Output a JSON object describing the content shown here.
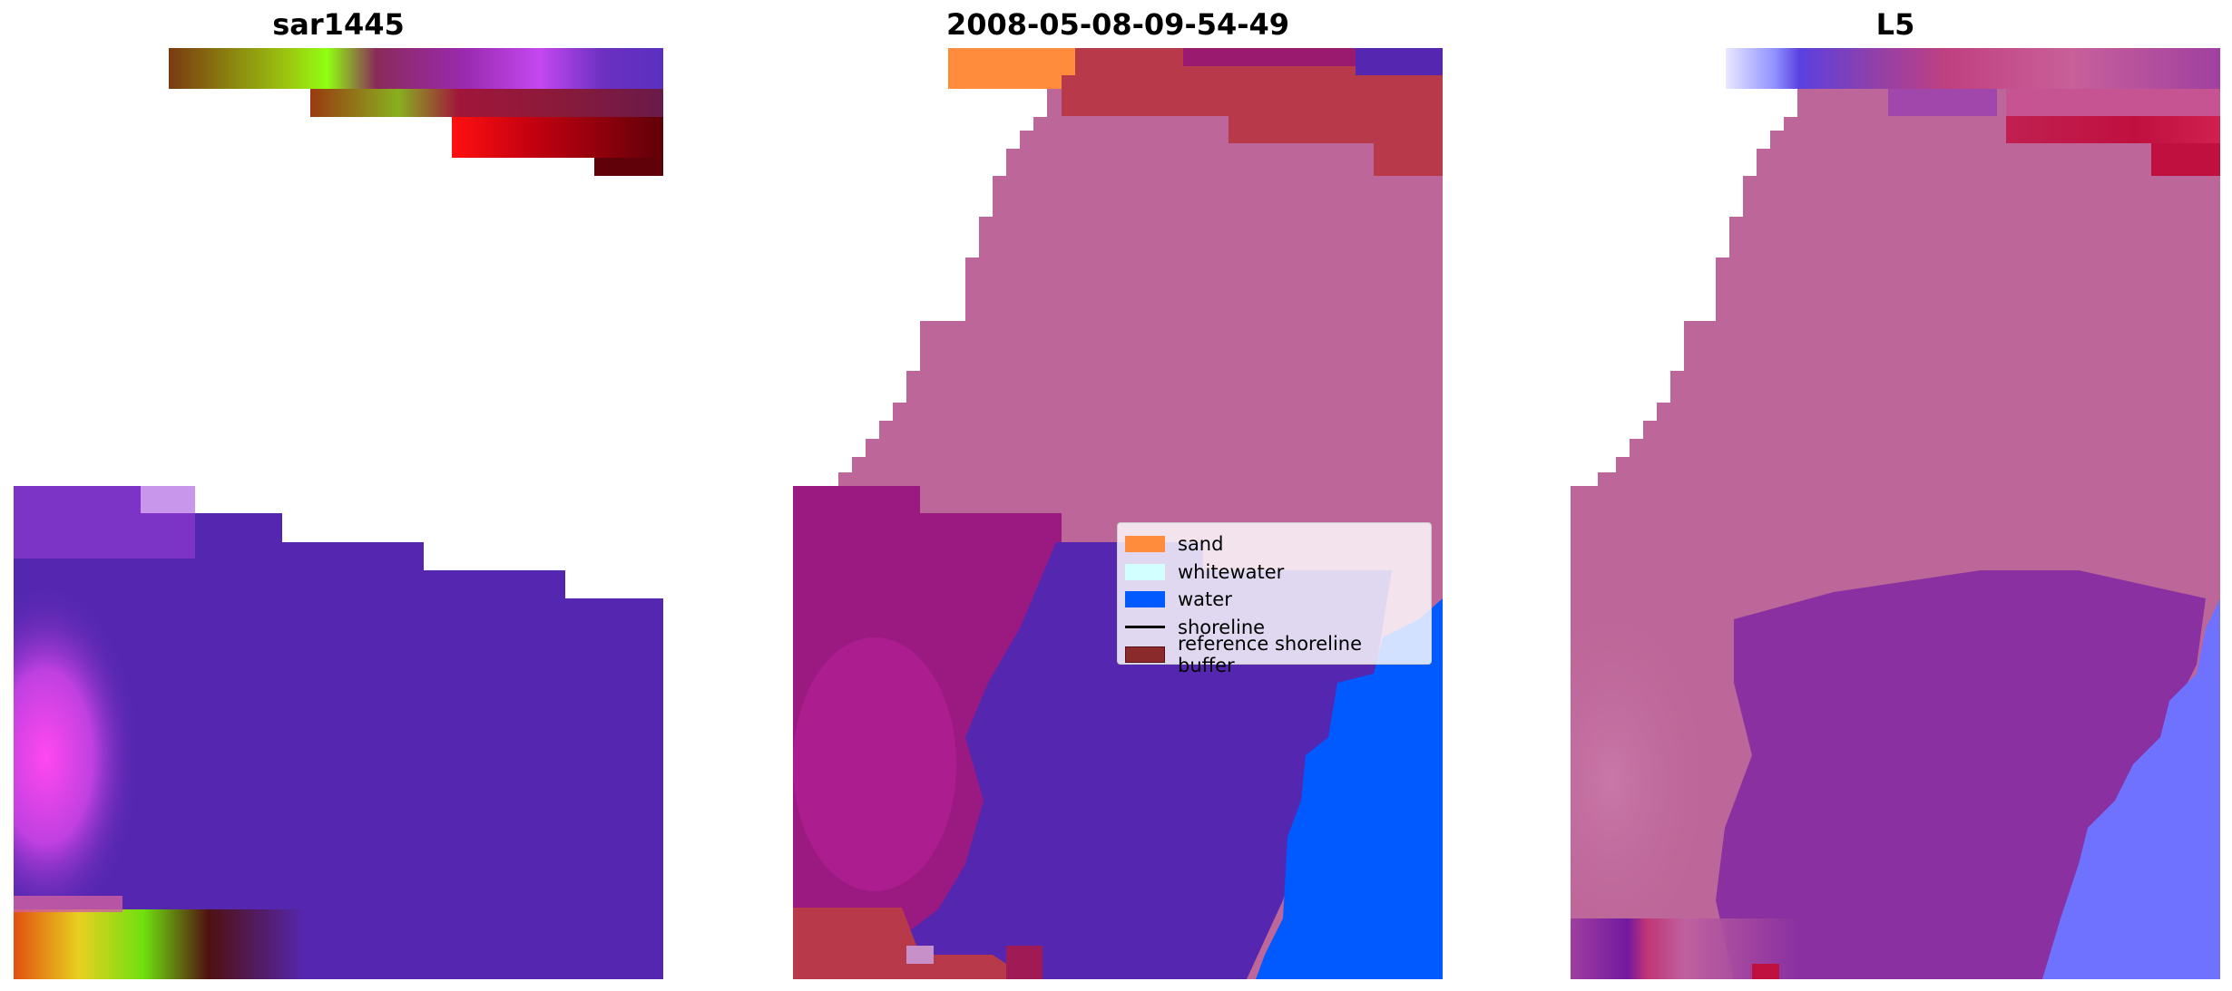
{
  "panels": [
    {
      "title": "sar1445"
    },
    {
      "title": "2008-05-08-09-54-49"
    },
    {
      "title": "L5"
    }
  ],
  "legend": {
    "items": [
      {
        "label": "sand",
        "kind": "patch",
        "color": "#ff8c3c"
      },
      {
        "label": "whitewater",
        "kind": "patch",
        "color": "#d2ffff"
      },
      {
        "label": "water",
        "kind": "patch",
        "color": "#005aff"
      },
      {
        "label": "shoreline",
        "kind": "line",
        "color": "#000000"
      },
      {
        "label": "reference shoreline buffer",
        "kind": "patch",
        "color": "#8b2a2a"
      }
    ]
  },
  "colors": {
    "purple": "#5527b0",
    "magenta": "#c040e0",
    "pink_class": "#bd6699",
    "dark_magenta": "#9a1a82",
    "dark_red": "#b83a4a",
    "water_blue": "#005aff"
  }
}
